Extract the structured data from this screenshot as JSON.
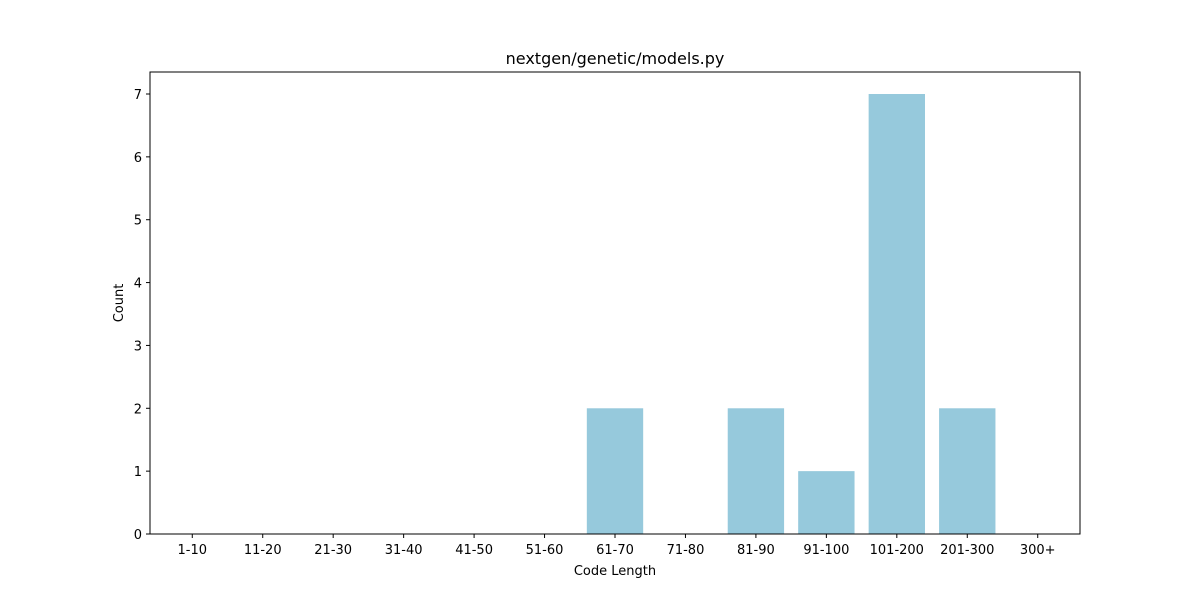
{
  "chart_data": {
    "type": "bar",
    "title": "nextgen/genetic/models.py",
    "xlabel": "Code Length",
    "ylabel": "Count",
    "categories": [
      "1-10",
      "11-20",
      "21-30",
      "31-40",
      "41-50",
      "51-60",
      "61-70",
      "71-80",
      "81-90",
      "91-100",
      "101-200",
      "201-300",
      "300+"
    ],
    "values": [
      0,
      0,
      0,
      0,
      0,
      0,
      2,
      0,
      2,
      1,
      7,
      2,
      0
    ],
    "ylim": [
      0,
      7.35
    ],
    "yticks": [
      0,
      1,
      2,
      3,
      4,
      5,
      6,
      7
    ],
    "grid": false,
    "legend": "none",
    "bar_color": "#96c9dc"
  }
}
